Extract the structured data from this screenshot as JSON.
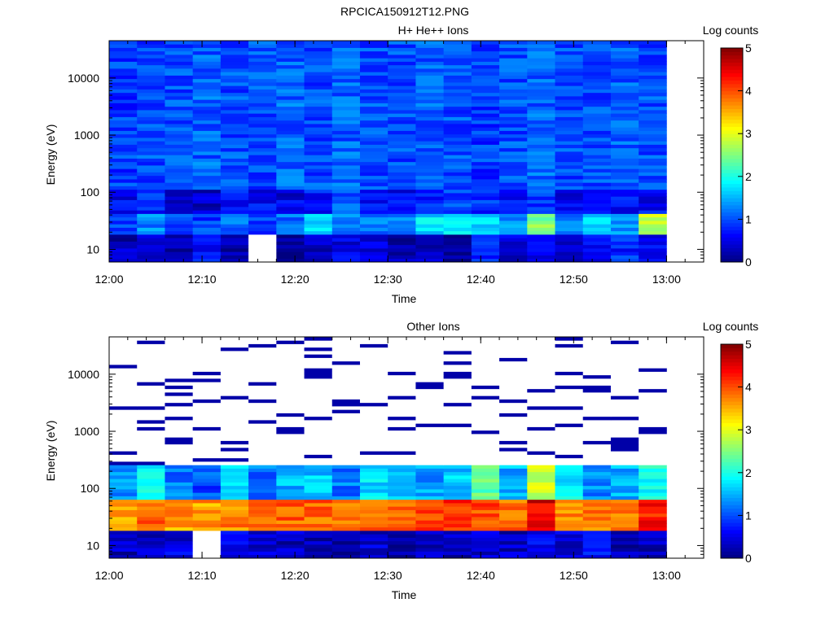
{
  "figure": {
    "title": "RPCICA150912T12.PNG"
  },
  "chart_data": [
    {
      "type": "heatmap",
      "title": "H+ He++ Ions",
      "xlabel": "Time",
      "ylabel": "Energy (eV)",
      "colorbar_label": "Log counts",
      "colorbar_ticks": [
        "0",
        "1",
        "2",
        "3",
        "4",
        "5"
      ],
      "colorbar_range": [
        0,
        5
      ],
      "x_ticks": [
        "12:00",
        "12:10",
        "12:20",
        "12:30",
        "12:40",
        "12:50",
        "13:00"
      ],
      "y_ticks": [
        "10",
        "100",
        "1000",
        "10000"
      ],
      "y_scale": "log",
      "ylim": [
        6,
        45000
      ],
      "xlim_minutes": [
        0,
        64
      ],
      "time_bins": [
        "12:00",
        "12:03",
        "12:06",
        "12:09",
        "12:12",
        "12:15",
        "12:18",
        "12:21",
        "12:24",
        "12:27",
        "12:30",
        "12:33",
        "12:36",
        "12:39",
        "12:42",
        "12:45",
        "12:48",
        "12:51",
        "12:54",
        "12:57",
        "13:00"
      ],
      "band_values": [
        {
          "energy_range": [
            6,
            18
          ],
          "log_counts": [
            0.3,
            0.5,
            0.3,
            0.6,
            0.2,
            null,
            0.0,
            0.4,
            0.5,
            0.4,
            0.3,
            0.4,
            0.1,
            0.8,
            0.4,
            0.5,
            0.4,
            0.6,
            0.8,
            0.5
          ]
        },
        {
          "energy_range": [
            18,
            45
          ],
          "log_counts": [
            1.0,
            1.3,
            1.0,
            0.9,
            1.1,
            1.0,
            1.2,
            1.6,
            1.3,
            1.2,
            1.3,
            1.7,
            1.8,
            1.6,
            1.3,
            2.5,
            1.3,
            1.6,
            1.3,
            2.8
          ]
        },
        {
          "energy_range": [
            45,
            120
          ],
          "log_counts": [
            0.6,
            0.8,
            0.5,
            0.4,
            0.7,
            0.6,
            0.5,
            0.7,
            1.0,
            0.7,
            0.6,
            0.8,
            0.9,
            0.8,
            0.7,
            0.9,
            0.6,
            0.8,
            0.7,
            0.6
          ]
        },
        {
          "energy_range": [
            120,
            45000
          ],
          "log_counts": [
            0.9,
            1.0,
            1.0,
            1.1,
            1.0,
            1.0,
            1.1,
            1.0,
            1.1,
            1.0,
            1.0,
            1.1,
            1.0,
            0.9,
            1.0,
            1.1,
            1.0,
            1.0,
            1.1,
            1.0
          ]
        }
      ]
    },
    {
      "type": "heatmap",
      "title": "Other Ions",
      "xlabel": "Time",
      "ylabel": "Energy (eV)",
      "colorbar_label": "Log counts",
      "colorbar_ticks": [
        "0",
        "1",
        "2",
        "3",
        "4",
        "5"
      ],
      "colorbar_range": [
        0,
        5
      ],
      "x_ticks": [
        "12:00",
        "12:10",
        "12:20",
        "12:30",
        "12:40",
        "12:50",
        "13:00"
      ],
      "y_ticks": [
        "10",
        "100",
        "1000",
        "10000"
      ],
      "y_scale": "log",
      "ylim": [
        6,
        45000
      ],
      "xlim_minutes": [
        0,
        64
      ],
      "time_bins": [
        "12:00",
        "12:03",
        "12:06",
        "12:09",
        "12:12",
        "12:15",
        "12:18",
        "12:21",
        "12:24",
        "12:27",
        "12:30",
        "12:33",
        "12:36",
        "12:39",
        "12:42",
        "12:45",
        "12:48",
        "12:51",
        "12:54",
        "12:57",
        "13:00"
      ],
      "band_values": [
        {
          "energy_range": [
            6,
            18
          ],
          "log_counts": [
            0.3,
            0.4,
            0.5,
            null,
            0.5,
            0.4,
            0.3,
            0.3,
            0.2,
            0.4,
            0.1,
            0.3,
            0.3,
            0.4,
            0.3,
            0.5,
            0.4,
            0.6,
            0.2,
            0.3
          ]
        },
        {
          "energy_range": [
            18,
            60
          ],
          "log_counts": [
            3.5,
            3.9,
            3.6,
            3.6,
            3.7,
            3.8,
            3.9,
            3.9,
            3.8,
            3.9,
            3.9,
            4.1,
            4.2,
            4.0,
            3.8,
            4.5,
            3.7,
            3.8,
            3.8,
            4.3
          ]
        },
        {
          "energy_range": [
            60,
            250
          ],
          "log_counts": [
            1.3,
            1.8,
            1.2,
            1.0,
            1.6,
            1.2,
            1.5,
            1.6,
            1.2,
            1.7,
            1.6,
            1.4,
            1.6,
            2.4,
            1.5,
            2.9,
            1.8,
            1.3,
            1.5,
            2.0
          ]
        },
        {
          "energy_range": [
            250,
            45000
          ],
          "log_counts": [
            0.2,
            0.2,
            0.2,
            0.2,
            0.2,
            0.2,
            0.2,
            0.2,
            0.2,
            0.2,
            0.2,
            0.2,
            0.2,
            0.2,
            0.2,
            0.2,
            0.2,
            0.2,
            0.2,
            0.2
          ]
        }
      ],
      "note_sparse": "Above ~250 eV mostly no counts (white) with sparse single-bin counts near 0"
    }
  ]
}
